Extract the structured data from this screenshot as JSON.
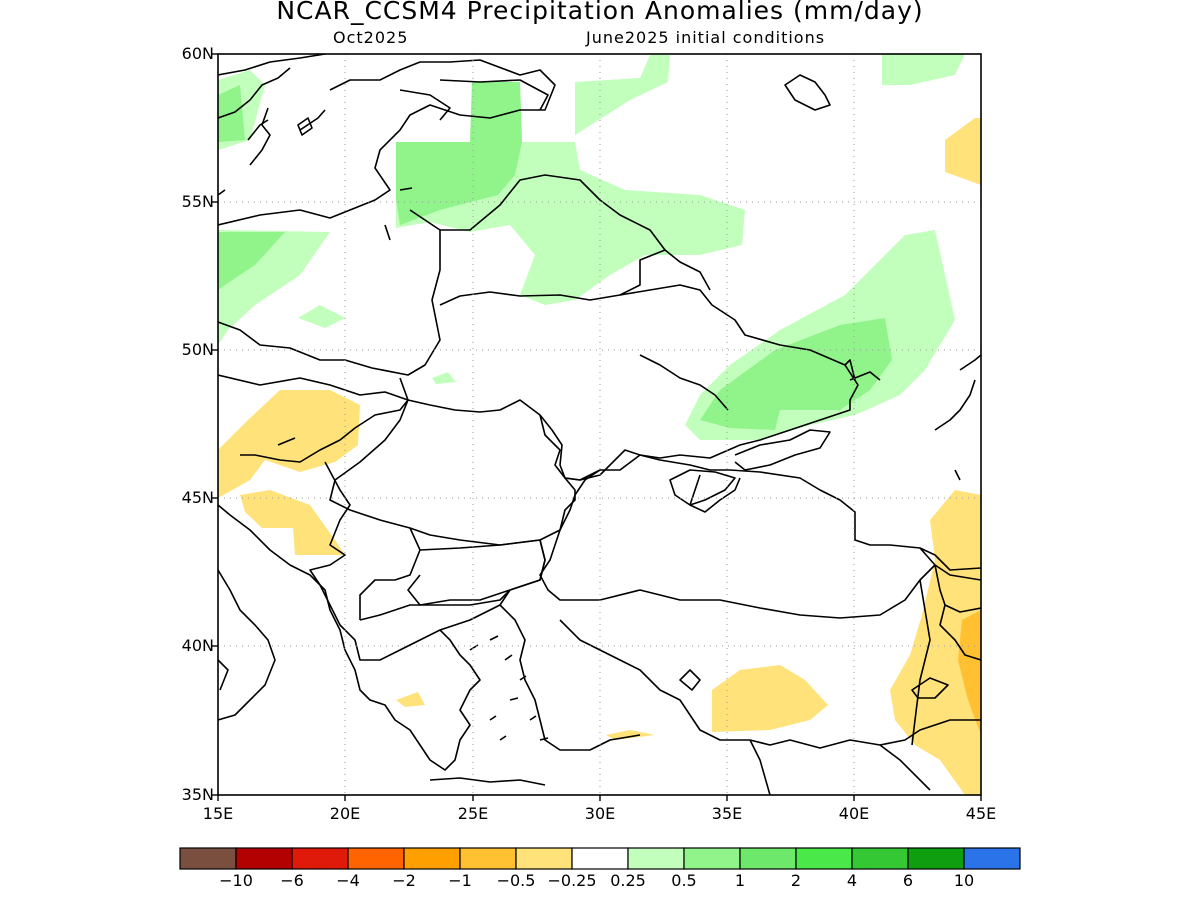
{
  "title": "NCAR_CCSM4 Precipitation Anomalies (mm/day)",
  "subtitle_left": "Oct2025",
  "subtitle_right": "June2025 initial conditions",
  "lat_labels": [
    "60N",
    "55N",
    "50N",
    "45N",
    "40N",
    "35N"
  ],
  "lon_labels": [
    "15E",
    "20E",
    "25E",
    "30E",
    "35E",
    "40E",
    "45E"
  ],
  "colorbar": {
    "colors": [
      "#7a4f40",
      "#b30000",
      "#e01a0a",
      "#ff6400",
      "#ffa000",
      "#ffc032",
      "#ffe27a",
      "#ffffff",
      "#c2ffbc",
      "#90f48a",
      "#6ee86a",
      "#4ae848",
      "#34c934",
      "#0f9e0f",
      "#2a73e8"
    ],
    "labels": [
      "−10",
      "−6",
      "−4",
      "−2",
      "−1",
      "−0.5",
      "−0.25",
      "0.25",
      "0.5",
      "1",
      "2",
      "4",
      "6",
      "10"
    ]
  }
}
